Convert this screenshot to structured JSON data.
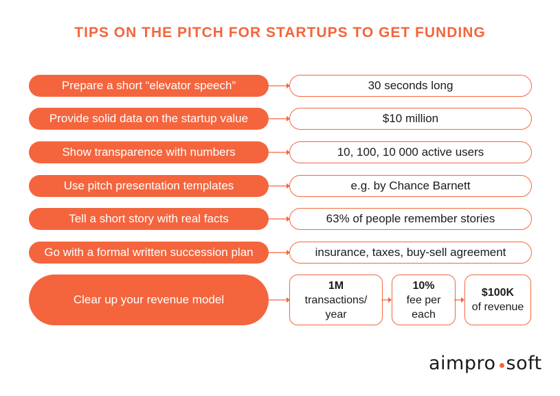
{
  "title": "TIPS ON THE PITCH FOR STARTUPS TO GET FUNDING",
  "rows": [
    {
      "tip": "Prepare a short “elevator speech”",
      "detail": "30 seconds long"
    },
    {
      "tip": "Provide solid data on the startup value",
      "detail": "$10 million"
    },
    {
      "tip": "Show transparence with numbers",
      "detail": "10, 100, 10 000 active users"
    },
    {
      "tip": "Use pitch presentation templates",
      "detail": "e.g. by Chance Barnett"
    },
    {
      "tip": "Tell a short story with real facts",
      "detail": "63% of people remember stories"
    },
    {
      "tip": "Go with a formal written succession plan",
      "detail": "insurance, taxes, buy-sell agreement"
    }
  ],
  "revenue": {
    "tip": "Clear up your revenue model",
    "steps": [
      {
        "value": "1M",
        "text": "transactions/ year"
      },
      {
        "value": "10%",
        "text": "fee per each"
      },
      {
        "value": "$100K",
        "text": "of revenue"
      }
    ]
  },
  "logo": {
    "left": "aimpro",
    "right": "soft"
  },
  "colors": {
    "accent": "#f4653d",
    "text": "#1a1a1a"
  }
}
